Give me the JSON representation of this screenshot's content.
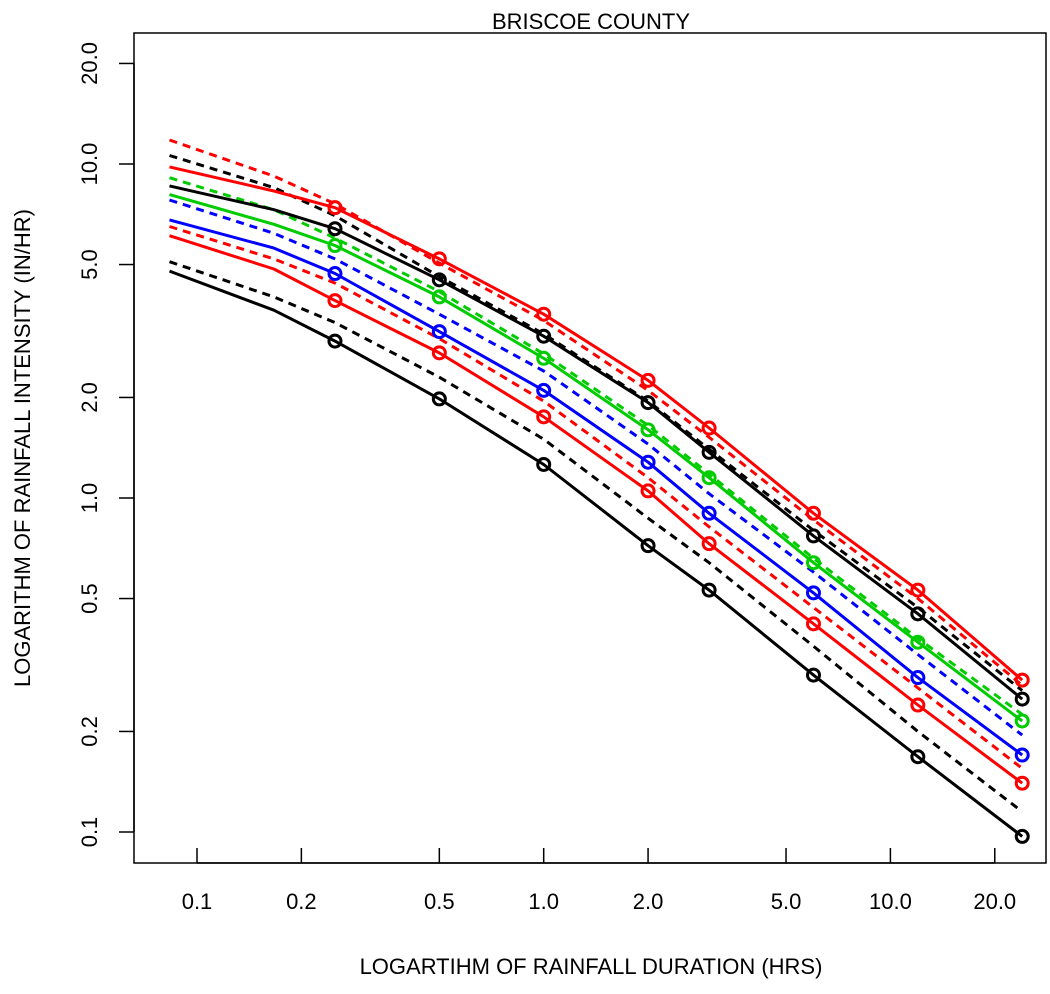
{
  "chart_data": {
    "type": "line",
    "title": "BRISCOE COUNTY",
    "xlabel": "LOGARTIHM OF RAINFALL DURATION (HRS)",
    "ylabel": "LOGARITHM OF RAINFALL INTENSITY (IN/HR)",
    "x_scale": "log",
    "y_scale": "log",
    "xlim": [
      0.0833,
      24
    ],
    "ylim": [
      0.1,
      20
    ],
    "x_ticks": [
      0.1,
      0.2,
      0.5,
      1.0,
      2.0,
      5.0,
      10.0,
      20.0
    ],
    "x_tick_labels": [
      "0.1",
      "0.2",
      "0.5",
      "1.0",
      "2.0",
      "5.0",
      "10.0",
      "20.0"
    ],
    "y_ticks": [
      0.1,
      0.2,
      0.5,
      1.0,
      2.0,
      5.0,
      10.0,
      20.0
    ],
    "y_tick_labels": [
      "0.1",
      "0.2",
      "0.5",
      "1.0",
      "2.0",
      "5.0",
      "10.0",
      "20.0"
    ],
    "grid": false,
    "legend": "none",
    "point_durations": [
      0.25,
      0.5,
      1,
      2,
      3,
      6,
      12,
      24
    ],
    "curve_durations": [
      0.0833,
      0.1667,
      0.25,
      0.5,
      1,
      2,
      3,
      6,
      12,
      24
    ],
    "series": [
      {
        "color": "#000000",
        "style": "solid",
        "points": [
          2.95,
          1.98,
          1.26,
          0.72,
          0.53,
          0.295,
          0.168,
          0.097
        ],
        "curve": [
          4.78,
          3.65,
          2.95,
          1.98,
          1.26,
          0.72,
          0.53,
          0.295,
          0.168,
          0.097
        ]
      },
      {
        "color": "#000000",
        "style": "dashed",
        "curve": [
          5.1,
          4.0,
          3.35,
          2.3,
          1.5,
          0.87,
          0.64,
          0.36,
          0.2,
          0.115
        ]
      },
      {
        "color": "#ff0000",
        "style": "solid",
        "points": [
          3.9,
          2.72,
          1.75,
          1.05,
          0.73,
          0.42,
          0.24,
          0.14
        ],
        "curve": [
          6.1,
          4.85,
          3.9,
          2.72,
          1.75,
          1.05,
          0.73,
          0.42,
          0.24,
          0.14
        ]
      },
      {
        "color": "#ff0000",
        "style": "dashed",
        "curve": [
          6.5,
          5.2,
          4.4,
          3.0,
          1.95,
          1.15,
          0.82,
          0.47,
          0.27,
          0.155
        ]
      },
      {
        "color": "#0000ff",
        "style": "solid",
        "points": [
          4.7,
          3.15,
          2.1,
          1.28,
          0.9,
          0.52,
          0.29,
          0.17
        ],
        "curve": [
          6.8,
          5.6,
          4.7,
          3.15,
          2.1,
          1.28,
          0.9,
          0.52,
          0.29,
          0.17
        ]
      },
      {
        "color": "#0000ff",
        "style": "dashed",
        "curve": [
          7.8,
          6.2,
          5.2,
          3.55,
          2.4,
          1.45,
          1.03,
          0.6,
          0.34,
          0.195
        ]
      },
      {
        "color": "#00cc00",
        "style": "solid",
        "points": [
          5.7,
          4.0,
          2.62,
          1.6,
          1.15,
          0.64,
          0.37,
          0.215
        ],
        "curve": [
          8.1,
          6.6,
          5.7,
          4.0,
          2.62,
          1.6,
          1.15,
          0.64,
          0.37,
          0.215
        ]
      },
      {
        "color": "#00cc00",
        "style": "dashed",
        "curve": [
          9.1,
          7.3,
          6.0,
          4.15,
          2.7,
          1.65,
          1.18,
          0.66,
          0.38,
          0.225
        ]
      },
      {
        "color": "#000000",
        "style": "solid",
        "points": [
          6.4,
          4.5,
          3.05,
          1.93,
          1.37,
          0.77,
          0.45,
          0.25
        ],
        "curve": [
          8.6,
          7.3,
          6.4,
          4.5,
          3.05,
          1.93,
          1.37,
          0.77,
          0.45,
          0.25
        ]
      },
      {
        "color": "#000000",
        "style": "dashed",
        "curve": [
          10.6,
          8.5,
          7.0,
          4.6,
          3.1,
          1.95,
          1.4,
          0.8,
          0.47,
          0.265
        ]
      },
      {
        "color": "#ff0000",
        "style": "solid",
        "points": [
          7.4,
          5.2,
          3.55,
          2.25,
          1.62,
          0.9,
          0.53,
          0.285
        ],
        "curve": [
          9.8,
          8.3,
          7.4,
          5.2,
          3.55,
          2.25,
          1.62,
          0.9,
          0.53,
          0.285
        ]
      },
      {
        "color": "#ff0000",
        "style": "dashed",
        "curve": [
          11.8,
          9.2,
          7.6,
          5.05,
          3.4,
          2.1,
          1.52,
          0.86,
          0.5,
          0.275
        ]
      }
    ]
  }
}
